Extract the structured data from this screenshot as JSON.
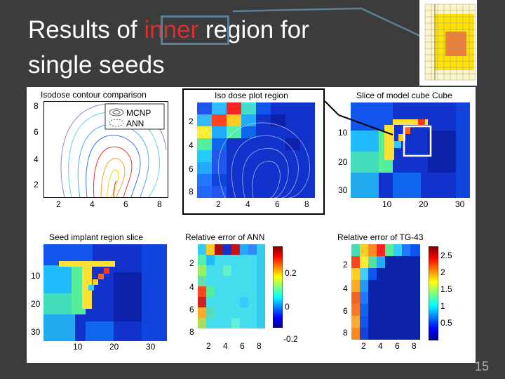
{
  "slide": {
    "title_pre": "Results of ",
    "title_highlight": "inner",
    "title_post": " region for",
    "title_line2": "single seeds",
    "page_number": "15"
  },
  "colors": {
    "background": "#3c3c3c",
    "highlight_text": "#d8302a",
    "callout": "#5b7f94"
  },
  "panels": {
    "isodose": {
      "title": "Isodose contour comparison",
      "legend": [
        "MCNP",
        "ANN"
      ],
      "x_ticks": [
        "2",
        "4",
        "6",
        "8"
      ],
      "y_ticks": [
        "8",
        "6",
        "4",
        "2"
      ]
    },
    "isodose_plot": {
      "title": "Iso dose plot region",
      "x_ticks": [
        "2",
        "4",
        "6",
        "8"
      ],
      "y_ticks": [
        "2",
        "4",
        "6",
        "8"
      ]
    },
    "model_cube": {
      "title": "Slice of model cube Cube",
      "x_ticks": [
        "10",
        "20",
        "30"
      ],
      "y_ticks": [
        "10",
        "20",
        "30"
      ]
    },
    "seed_implant": {
      "title": "Seed implant region slice",
      "x_ticks": [
        "10",
        "20",
        "30"
      ],
      "y_ticks": [
        "10",
        "20",
        "30"
      ]
    },
    "rel_err_ann": {
      "title": "Relative error of ANN",
      "x_ticks": [
        "2",
        "4",
        "6",
        "8"
      ],
      "y_ticks": [
        "2",
        "4",
        "6",
        "8"
      ],
      "cbar_ticks": [
        "0.2",
        "0",
        "-0.2"
      ]
    },
    "rel_err_tg43": {
      "title": "Relative error of TG-43",
      "x_ticks": [
        "2",
        "4",
        "6",
        "8"
      ],
      "y_ticks": [
        "2",
        "4",
        "6",
        "8"
      ],
      "cbar_ticks": [
        "2.5",
        "2",
        "1.5",
        "1",
        "0.5"
      ]
    }
  }
}
